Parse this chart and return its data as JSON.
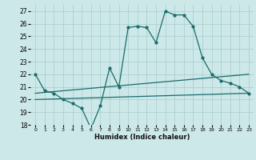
{
  "xlabel": "Humidex (Indice chaleur)",
  "bg_color": "#cce8e8",
  "grid_color": "#aacccc",
  "line_color": "#1a6b6b",
  "x": [
    0,
    1,
    2,
    3,
    4,
    5,
    6,
    7,
    8,
    9,
    10,
    11,
    12,
    13,
    14,
    15,
    16,
    17,
    18,
    19,
    20,
    21,
    22,
    23
  ],
  "line1": [
    22.0,
    20.7,
    20.5,
    20.0,
    19.7,
    19.3,
    17.7,
    19.5,
    22.5,
    21.0,
    25.7,
    25.8,
    25.7,
    24.5,
    27.0,
    26.7,
    26.7,
    25.8,
    23.3,
    22.0,
    21.5,
    21.3,
    21.0,
    20.5
  ],
  "line2_x": [
    0,
    23
  ],
  "line2_y": [
    20.5,
    22.0
  ],
  "line3_x": [
    0,
    23
  ],
  "line3_y": [
    20.0,
    20.5
  ],
  "ylim": [
    18,
    27.5
  ],
  "xlim": [
    -0.5,
    23.5
  ],
  "yticks": [
    18,
    19,
    20,
    21,
    22,
    23,
    24,
    25,
    26,
    27
  ],
  "xticks": [
    0,
    1,
    2,
    3,
    4,
    5,
    6,
    7,
    8,
    9,
    10,
    11,
    12,
    13,
    14,
    15,
    16,
    17,
    18,
    19,
    20,
    21,
    22,
    23
  ]
}
